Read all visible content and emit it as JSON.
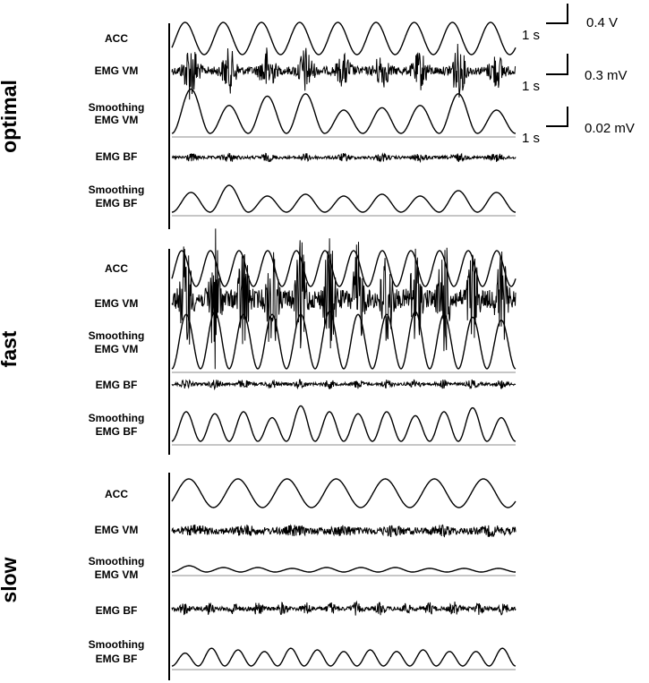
{
  "chart_data": {
    "type": "line",
    "title": "",
    "scale_bars": [
      {
        "time_label": "1 s",
        "amplitude_label": "0.4 V"
      },
      {
        "time_label": "1 s",
        "amplitude_label": "0.3 mV"
      },
      {
        "time_label": "1 s",
        "amplitude_label": "0.02 mV"
      }
    ],
    "panels": [
      {
        "condition": "optimal",
        "acc_cycles": 9,
        "rows": [
          {
            "label": "ACC",
            "kind": "acc",
            "cycles": 9
          },
          {
            "label": "EMG VM",
            "kind": "emg",
            "cycles": 9,
            "bursts": [
              1.0,
              0.7,
              0.75,
              0.75,
              0.5,
              0.55,
              0.6,
              0.85,
              0.55
            ]
          },
          {
            "label": "Smoothing EMG VM",
            "label_lines": [
              "Smoothing",
              "EMG VM"
            ],
            "kind": "envelope",
            "cycles": 9,
            "peaks": [
              0.95,
              0.6,
              0.8,
              0.85,
              0.5,
              0.55,
              0.6,
              0.85,
              0.5
            ],
            "has_baseline": true
          },
          {
            "label": "EMG BF",
            "kind": "emg",
            "cycles": 9,
            "bursts": [
              0.3,
              0.35,
              0.3,
              0.3,
              0.3,
              0.3,
              0.3,
              0.3,
              0.3
            ]
          },
          {
            "label": "Smoothing EMG BF",
            "label_lines": [
              "Smoothing",
              "EMG BF"
            ],
            "kind": "envelope",
            "cycles": 9,
            "peaks": [
              0.55,
              0.75,
              0.45,
              0.5,
              0.45,
              0.5,
              0.45,
              0.6,
              0.55
            ],
            "has_baseline": true
          }
        ]
      },
      {
        "condition": "fast",
        "acc_cycles": 12,
        "rows": [
          {
            "label": "ACC",
            "kind": "acc",
            "cycles": 12
          },
          {
            "label": "EMG VM",
            "kind": "emg",
            "cycles": 12,
            "bursts": [
              0.9,
              1.0,
              0.8,
              0.85,
              0.8,
              0.9,
              0.8,
              0.85,
              0.8,
              0.9,
              0.75,
              0.7
            ]
          },
          {
            "label": "Smoothing EMG VM",
            "label_lines": [
              "Smoothing",
              "EMG VM"
            ],
            "kind": "envelope",
            "cycles": 12,
            "peaks": [
              0.95,
              1.0,
              0.95,
              0.95,
              0.95,
              1.0,
              0.95,
              0.95,
              1.0,
              0.95,
              0.9,
              0.85
            ],
            "has_baseline": true
          },
          {
            "label": "EMG BF",
            "kind": "emg",
            "cycles": 12,
            "bursts": [
              0.35,
              0.4,
              0.35,
              0.35,
              0.4,
              0.35,
              0.35,
              0.35,
              0.35,
              0.35,
              0.35,
              0.35
            ]
          },
          {
            "label": "Smoothing EMG BF",
            "label_lines": [
              "Smoothing",
              "EMG BF"
            ],
            "kind": "envelope",
            "cycles": 12,
            "peaks": [
              0.75,
              0.7,
              0.75,
              0.6,
              0.9,
              0.75,
              0.7,
              0.75,
              0.65,
              0.75,
              0.85,
              0.6
            ],
            "has_baseline": true
          }
        ]
      },
      {
        "condition": "slow",
        "acc_cycles": 7,
        "rows": [
          {
            "label": "ACC",
            "kind": "acc",
            "cycles": 7
          },
          {
            "label": "EMG VM",
            "kind": "emg",
            "cycles": 7,
            "bursts": [
              0.12,
              0.12,
              0.12,
              0.12,
              0.12,
              0.12,
              0.12
            ]
          },
          {
            "label": "Smoothing EMG VM",
            "label_lines": [
              "Smoothing",
              "EMG VM"
            ],
            "kind": "envelope",
            "cycles": 10,
            "peaks": [
              0.35,
              0.25,
              0.25,
              0.2,
              0.25,
              0.25,
              0.25,
              0.2,
              0.2,
              0.2
            ],
            "has_baseline": true
          },
          {
            "label": "EMG BF",
            "kind": "emg",
            "cycles": 14,
            "bursts": [
              0.35,
              0.35,
              0.35,
              0.4,
              0.35,
              0.35,
              0.35,
              0.35,
              0.35,
              0.35,
              0.35,
              0.4,
              0.35,
              0.35
            ]
          },
          {
            "label": "Smoothing EMG BF",
            "label_lines": [
              "Smoothing",
              "EMG BF"
            ],
            "kind": "envelope",
            "cycles": 13,
            "peaks": [
              0.4,
              0.55,
              0.5,
              0.45,
              0.55,
              0.5,
              0.45,
              0.5,
              0.45,
              0.5,
              0.45,
              0.45,
              0.55
            ],
            "has_baseline": true
          }
        ]
      }
    ]
  }
}
